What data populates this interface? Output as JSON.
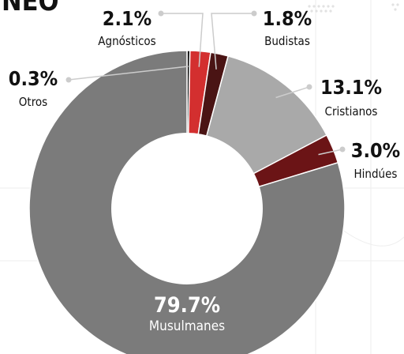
{
  "title": "NEO",
  "chart_data": {
    "type": "pie",
    "donut": true,
    "title": "NEO",
    "slices": [
      {
        "label": "Otros",
        "value": 0.3,
        "value_label": "0.3%",
        "color": "#111111"
      },
      {
        "label": "Agnósticos",
        "value": 2.1,
        "value_label": "2.1%",
        "color": "#d32f2f"
      },
      {
        "label": "Budistas",
        "value": 1.8,
        "value_label": "1.8%",
        "color": "#4a1414"
      },
      {
        "label": "Cristianos",
        "value": 13.1,
        "value_label": "13.1%",
        "color": "#a9a9a9"
      },
      {
        "label": "Hindúes",
        "value": 3.0,
        "value_label": "3.0%",
        "color": "#6b1416"
      },
      {
        "label": "Musulmanes",
        "value": 79.7,
        "value_label": "79.7%",
        "color": "#7b7b7b"
      }
    ]
  }
}
